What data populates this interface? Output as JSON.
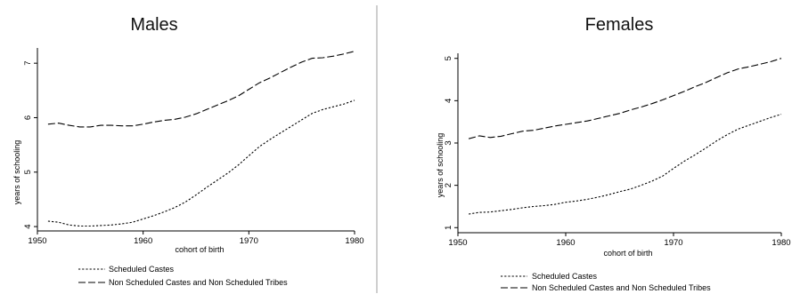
{
  "chart_data": [
    {
      "type": "line",
      "title": "Males",
      "xlabel": "cohort of birth",
      "ylabel": "years of schooling",
      "xlim": [
        1950,
        1980
      ],
      "ylim": [
        3.92,
        7.28
      ],
      "xticks": [
        "1950",
        "1960",
        "1970",
        "1980"
      ],
      "yticks": [
        "4",
        "5",
        "6",
        "7"
      ],
      "grid": false,
      "legend_position": "bottom",
      "series": [
        {
          "name": "Scheduled Castes",
          "dash": "short",
          "x": [
            1951,
            1952,
            1953,
            1954,
            1955,
            1956,
            1957,
            1958,
            1959,
            1960,
            1961,
            1962,
            1963,
            1964,
            1965,
            1966,
            1967,
            1968,
            1969,
            1970,
            1971,
            1972,
            1973,
            1974,
            1975,
            1976,
            1977,
            1978,
            1979,
            1980
          ],
          "values": [
            4.1,
            4.08,
            4.03,
            4.01,
            4.01,
            4.02,
            4.03,
            4.05,
            4.08,
            4.14,
            4.2,
            4.27,
            4.35,
            4.45,
            4.58,
            4.72,
            4.85,
            4.98,
            5.13,
            5.3,
            5.47,
            5.6,
            5.72,
            5.84,
            5.96,
            6.08,
            6.15,
            6.2,
            6.25,
            6.32
          ]
        },
        {
          "name": "Non Scheduled Castes and Non Scheduled Tribes",
          "dash": "long",
          "x": [
            1951,
            1952,
            1953,
            1954,
            1955,
            1956,
            1957,
            1958,
            1959,
            1960,
            1961,
            1962,
            1963,
            1964,
            1965,
            1966,
            1967,
            1968,
            1969,
            1970,
            1971,
            1972,
            1973,
            1974,
            1975,
            1976,
            1977,
            1978,
            1979,
            1980
          ],
          "values": [
            5.88,
            5.9,
            5.86,
            5.83,
            5.83,
            5.86,
            5.86,
            5.85,
            5.85,
            5.88,
            5.92,
            5.95,
            5.97,
            6.01,
            6.07,
            6.15,
            6.23,
            6.31,
            6.4,
            6.52,
            6.64,
            6.73,
            6.83,
            6.93,
            7.02,
            7.09,
            7.1,
            7.13,
            7.17,
            7.22
          ]
        }
      ]
    },
    {
      "type": "line",
      "title": "Females",
      "xlabel": "cohort of birth",
      "ylabel": "years of schooling",
      "xlim": [
        1950,
        1980
      ],
      "ylim": [
        0.88,
        5.12
      ],
      "xticks": [
        "1950",
        "1960",
        "1970",
        "1980"
      ],
      "yticks": [
        "1",
        "2",
        "3",
        "4",
        "5"
      ],
      "grid": false,
      "legend_position": "bottom",
      "series": [
        {
          "name": "Scheduled Castes",
          "dash": "short",
          "x": [
            1951,
            1952,
            1953,
            1954,
            1955,
            1956,
            1957,
            1958,
            1959,
            1960,
            1961,
            1962,
            1963,
            1964,
            1965,
            1966,
            1967,
            1968,
            1969,
            1970,
            1971,
            1972,
            1973,
            1974,
            1975,
            1976,
            1977,
            1978,
            1979,
            1980
          ],
          "values": [
            1.32,
            1.36,
            1.37,
            1.4,
            1.43,
            1.47,
            1.5,
            1.52,
            1.55,
            1.6,
            1.63,
            1.67,
            1.72,
            1.78,
            1.85,
            1.91,
            2.0,
            2.1,
            2.22,
            2.4,
            2.57,
            2.72,
            2.88,
            3.05,
            3.2,
            3.33,
            3.42,
            3.51,
            3.6,
            3.68
          ]
        },
        {
          "name": "Non Scheduled Castes and Non Scheduled Tribes",
          "dash": "long",
          "x": [
            1951,
            1952,
            1953,
            1954,
            1955,
            1956,
            1957,
            1958,
            1959,
            1960,
            1961,
            1962,
            1963,
            1964,
            1965,
            1966,
            1967,
            1968,
            1969,
            1970,
            1971,
            1972,
            1973,
            1974,
            1975,
            1976,
            1977,
            1978,
            1979,
            1980
          ],
          "values": [
            3.1,
            3.17,
            3.13,
            3.16,
            3.22,
            3.28,
            3.3,
            3.35,
            3.4,
            3.44,
            3.48,
            3.52,
            3.58,
            3.64,
            3.7,
            3.78,
            3.85,
            3.93,
            4.02,
            4.12,
            4.22,
            4.33,
            4.43,
            4.55,
            4.66,
            4.75,
            4.8,
            4.86,
            4.92,
            5.0
          ]
        }
      ]
    }
  ]
}
